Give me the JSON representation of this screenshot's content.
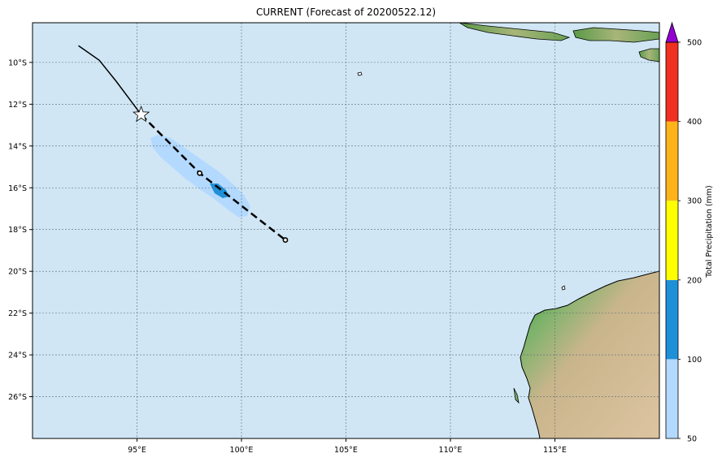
{
  "title": "CURRENT (Forecast of 20200522.12)",
  "map": {
    "lon_range": [
      90,
      120
    ],
    "lat_range": [
      -28,
      -8.1
    ],
    "lon_ticks": [
      "95°E",
      "100°E",
      "105°E",
      "110°E",
      "115°E"
    ],
    "lat_ticks": [
      "10°S",
      "12°S",
      "14°S",
      "16°S",
      "18°S",
      "20°S",
      "22°S",
      "24°S",
      "26°S"
    ],
    "ocean_color": "#d0e6f5",
    "gridlines": true
  },
  "track": {
    "observed": [
      [
        92.2,
        -9.2
      ],
      [
        93.2,
        -9.9
      ],
      [
        94.0,
        -10.9
      ],
      [
        94.6,
        -11.7
      ],
      [
        95.2,
        -12.5
      ]
    ],
    "current_position": [
      95.2,
      -12.5
    ],
    "forecast": [
      [
        95.2,
        -12.5
      ],
      [
        98.0,
        -15.3
      ],
      [
        102.1,
        -18.5
      ]
    ]
  },
  "colorbar": {
    "label": "Total Precipitation (mm)",
    "ticks": [
      "50",
      "100",
      "200",
      "300",
      "400",
      "500"
    ],
    "colors": [
      "#b3d9ff",
      "#1e90d8",
      "#ffff00",
      "#ffb31a",
      "#f03020",
      "#9400d3"
    ]
  }
}
